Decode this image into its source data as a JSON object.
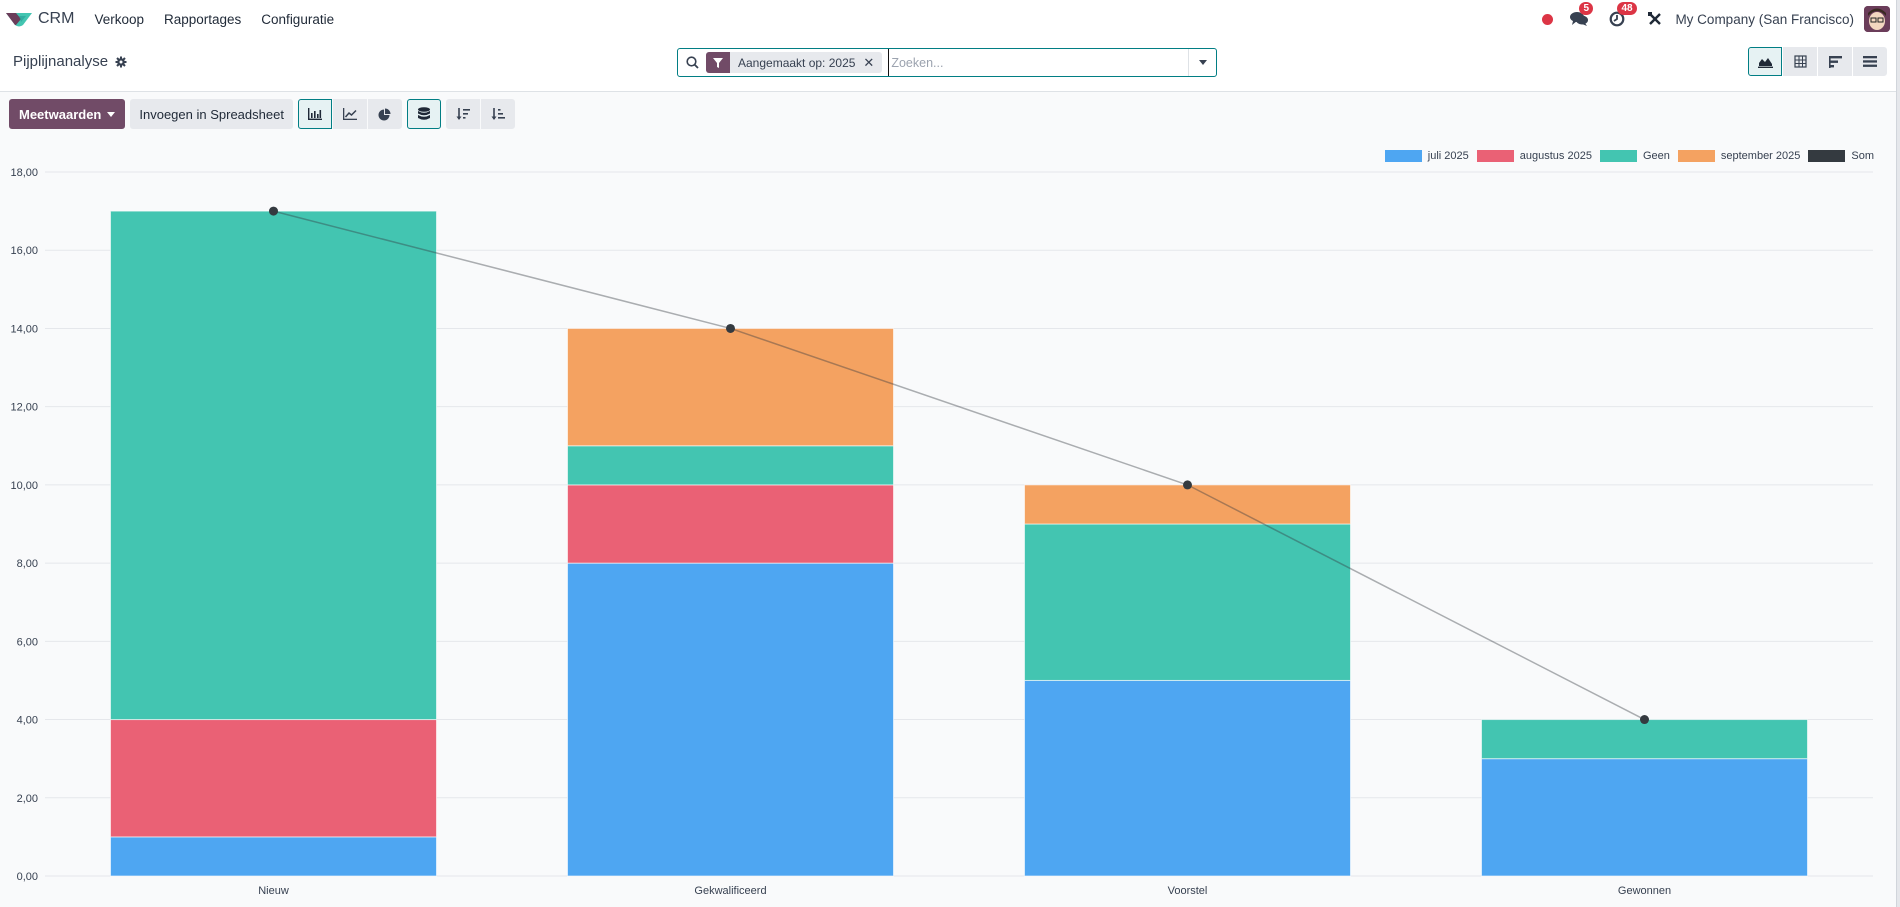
{
  "navbar": {
    "app_name": "CRM",
    "menu": [
      {
        "label": "Verkoop"
      },
      {
        "label": "Rapportages"
      },
      {
        "label": "Configuratie"
      }
    ],
    "messages_badge": "5",
    "activities_badge": "48",
    "company": "My Company (San Francisco)"
  },
  "control_panel": {
    "breadcrumb": "Pijplijnanalyse",
    "search": {
      "facet_label": "Aangemaakt op: 2025",
      "placeholder": "Zoeken..."
    },
    "views": [
      {
        "name": "graph",
        "icon": "area-chart-icon",
        "active": true
      },
      {
        "name": "pivot",
        "icon": "table-icon",
        "active": false
      },
      {
        "name": "cohort",
        "icon": "bar-horizontal-icon",
        "active": false
      },
      {
        "name": "list",
        "icon": "list-icon",
        "active": false
      }
    ]
  },
  "toolbar": {
    "measures_label": "Meetwaarden",
    "spreadsheet_label": "Invoegen in Spreadsheet",
    "chart_types": [
      {
        "name": "bar",
        "active": true
      },
      {
        "name": "line",
        "active": false
      },
      {
        "name": "pie",
        "active": false
      }
    ],
    "stacked_active": true,
    "sort_descending": "sort-desc",
    "sort_ascending": "sort-asc"
  },
  "colors": {
    "brand": "#714b67",
    "accent": "#017e84",
    "juli": "#4ea6f2",
    "augustus": "#ea6175",
    "geen": "#43c5b1",
    "september": "#f4a261",
    "som": "#343a40"
  },
  "chart_data": {
    "type": "bar",
    "stacked": true,
    "title": "",
    "xlabel": "",
    "ylabel": "",
    "categories": [
      "Nieuw",
      "Gekwalificeerd",
      "Voorstel",
      "Gewonnen"
    ],
    "series": [
      {
        "name": "juli 2025",
        "color": "#4ea6f2",
        "values": [
          1,
          8,
          5,
          3
        ]
      },
      {
        "name": "augustus 2025",
        "color": "#ea6175",
        "values": [
          3,
          2,
          0,
          0
        ]
      },
      {
        "name": "Geen",
        "color": "#43c5b1",
        "values": [
          13,
          1,
          4,
          1
        ]
      },
      {
        "name": "september 2025",
        "color": "#f4a261",
        "values": [
          0,
          3,
          1,
          0
        ]
      },
      {
        "name": "Som",
        "type": "line",
        "color": "#343a40",
        "values": [
          17,
          14,
          10,
          4
        ]
      }
    ],
    "ylim": [
      0,
      18
    ],
    "yticks": [
      "0,00",
      "2,00",
      "4,00",
      "6,00",
      "8,00",
      "10,00",
      "12,00",
      "14,00",
      "16,00",
      "18,00"
    ],
    "grid": true,
    "legend_position": "top-right"
  }
}
